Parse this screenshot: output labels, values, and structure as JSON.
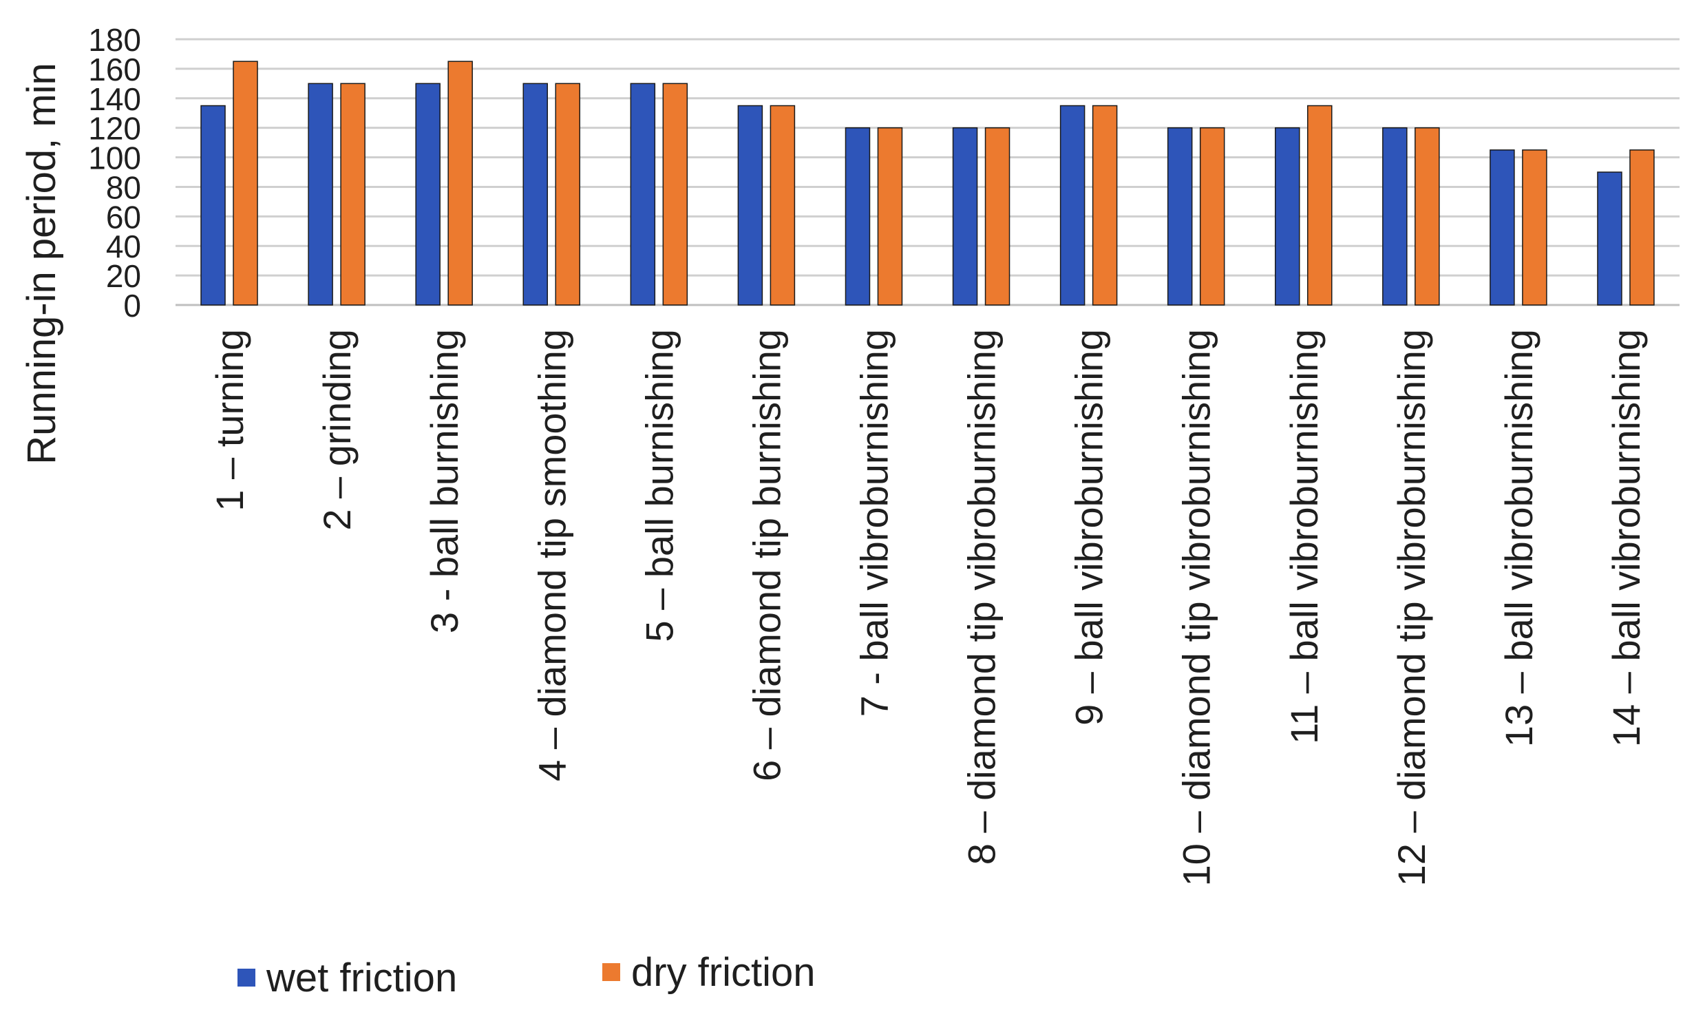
{
  "chart_data": {
    "type": "bar",
    "title": "",
    "xlabel": "",
    "ylabel": "Running-in period, min",
    "ylim": [
      0,
      180
    ],
    "yticks": [
      0,
      20,
      40,
      60,
      80,
      100,
      120,
      140,
      160,
      180
    ],
    "grid": true,
    "legend_position": "bottom-left",
    "categories": [
      "1 – turning",
      "2 – grinding",
      "3 - ball burnishing",
      "4 – diamond tip smoothing",
      "5 – ball burnishing",
      "6 – diamond tip burnishing",
      "7 -  ball vibroburnishing",
      "8 – diamond tip vibroburnishing",
      "9 – ball vibroburnishing",
      "10 – diamond tip vibroburnishing",
      "11 – ball vibroburnishing",
      "12 – diamond tip vibroburnishing",
      "13 – ball vibroburnishing",
      "14 – ball vibroburnishing"
    ],
    "series": [
      {
        "name": "wet friction",
        "color": "#2E55B9",
        "values": [
          135,
          150,
          150,
          150,
          150,
          135,
          120,
          120,
          135,
          120,
          120,
          120,
          105,
          90
        ]
      },
      {
        "name": "dry friction",
        "color": "#EC7A2F",
        "values": [
          165,
          150,
          165,
          150,
          150,
          135,
          120,
          120,
          135,
          120,
          135,
          120,
          105,
          105
        ]
      }
    ]
  }
}
